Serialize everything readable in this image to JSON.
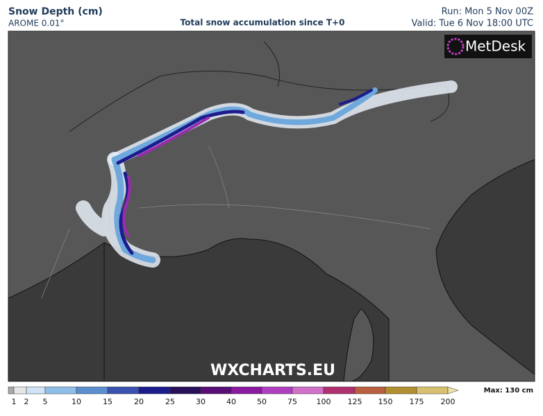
{
  "header": {
    "title": "Snow Depth (cm)",
    "model": "AROME 0.01°",
    "subtitle": "Total snow accumulation since T+0",
    "run": "Run: Mon 5 Nov 00Z",
    "valid": "Valid: Tue 6 Nov 18:00 UTC"
  },
  "logo": "MetDesk",
  "watermark": "WXCHARTS.EU",
  "legend": {
    "labels": [
      "1",
      "2",
      "5",
      "10",
      "15",
      "20",
      "25",
      "30",
      "40",
      "50",
      "75",
      "100",
      "125",
      "150",
      "175",
      "200"
    ],
    "colors": [
      "#a8a8a8",
      "#e6e6e6",
      "#cfe3f5",
      "#8fbfe8",
      "#5b8fd0",
      "#3a52b0",
      "#1c1c8c",
      "#28105a",
      "#5a0f78",
      "#8a1aa0",
      "#b040c0",
      "#d070c8",
      "#b03070",
      "#b86040",
      "#b09030",
      "#d8c070",
      "#f0e0a8"
    ],
    "max": "Max: 130 cm"
  }
}
